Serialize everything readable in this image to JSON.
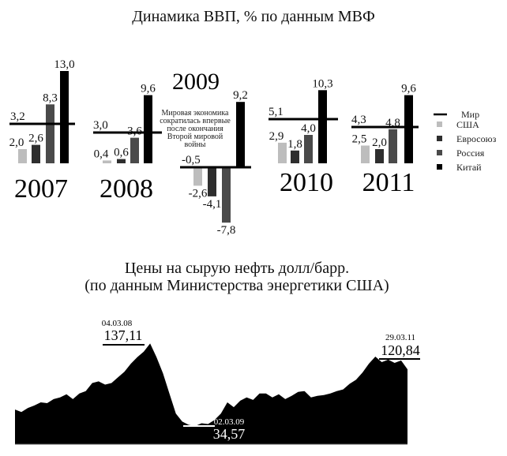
{
  "chart_data": [
    {
      "type": "bar",
      "title": "Динамика ВВП, % по данным МВФ",
      "categories": [
        "2007",
        "2008",
        "2009",
        "2010",
        "2011"
      ],
      "series": [
        {
          "name": "США",
          "color": "#bdbdbd",
          "values": [
            2.0,
            0.4,
            -2.6,
            2.9,
            2.5
          ],
          "labels": [
            "2,0",
            "0,4",
            "-2,6",
            "2,9",
            "2,5"
          ]
        },
        {
          "name": "Евросоюз",
          "color": "#2e2e2e",
          "values": [
            2.6,
            0.6,
            -4.1,
            1.8,
            2.0
          ],
          "labels": [
            "2,6",
            "0,6",
            "-4,1",
            "1,8",
            "2,0"
          ]
        },
        {
          "name": "Россия",
          "color": "#4a4a4a",
          "values": [
            8.3,
            3.6,
            -7.8,
            4.0,
            4.8
          ],
          "labels": [
            "8,3",
            "3,6",
            "-7,8",
            "4,0",
            "4,8"
          ]
        },
        {
          "name": "Китай",
          "color": "#000000",
          "values": [
            13.0,
            9.6,
            9.2,
            10.3,
            9.6
          ],
          "labels": [
            "13,0",
            "9,6",
            "9,2",
            "10,3",
            "9,6"
          ]
        }
      ],
      "world": {
        "name": "Мир",
        "values": [
          3.2,
          3.0,
          -0.5,
          5.1,
          4.3
        ],
        "labels": [
          "3,2",
          "3,0",
          "-0,5",
          "5,1",
          "4,3"
        ]
      },
      "annotation": [
        "Мировая экономика",
        "сократилась впервые",
        "после окончания",
        "Второй мировой",
        "войны"
      ],
      "legend_position": "right"
    },
    {
      "type": "area",
      "title_lines": [
        "Цены на сырую нефть долл/барр.",
        "(по данным Министерства энергетики США)"
      ],
      "values": [
        55,
        52,
        57,
        60,
        64,
        63,
        68,
        70,
        74,
        68,
        75,
        78,
        88,
        90,
        86,
        88,
        95,
        102,
        112,
        120,
        127,
        137.11,
        120,
        100,
        75,
        50,
        40,
        36,
        34.57,
        38,
        37,
        42,
        50,
        64,
        58,
        66,
        70,
        67,
        75,
        75,
        70,
        74,
        68,
        72,
        77,
        78,
        70,
        72,
        73,
        75,
        78,
        80,
        87,
        92,
        101,
        112,
        120.84,
        114,
        117,
        113,
        116,
        105
      ],
      "ylim": [
        12,
        150
      ],
      "annotations": [
        {
          "date": "04.03.08",
          "value": "137,11"
        },
        {
          "date": "02.03.09",
          "value": "34,57"
        },
        {
          "date": "29.03.11",
          "value": "120,84"
        }
      ]
    }
  ]
}
